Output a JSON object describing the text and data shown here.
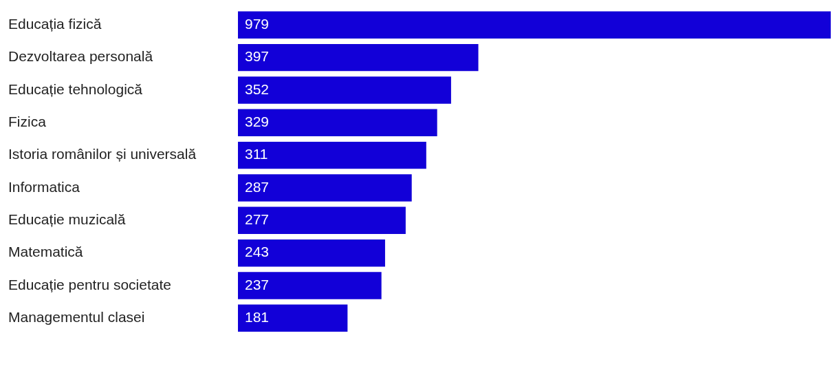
{
  "chart_data": {
    "type": "bar",
    "orientation": "horizontal",
    "categories": [
      "Educația fizică",
      "Dezvoltarea personală",
      "Educație tehnologică",
      "Fizica",
      "Istoria românilor și universală",
      "Informatica",
      "Educație muzicală",
      "Matematică",
      "Educație pentru societate",
      "Managementul clasei"
    ],
    "values": [
      979,
      397,
      352,
      329,
      311,
      287,
      277,
      243,
      237,
      181
    ],
    "color": "#1200d8",
    "data_labels": true,
    "legend": false
  }
}
